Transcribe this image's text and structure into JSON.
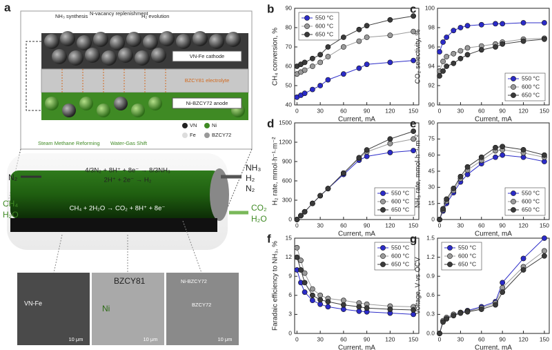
{
  "schematic": {
    "panel": "a",
    "processes": [
      "NH₃ synthesis",
      "N-vacancy replenishment",
      "H₂ evolution",
      "Steam Methane Reforming",
      "Water-Gas Shift"
    ],
    "cathode": "VN-Fe cathode",
    "electrolyte": "BZCY81 electrolyte",
    "anode": "Ni-BZCY72 anode",
    "legend": [
      "VN",
      "Ni",
      "Fe",
      "BZCY72"
    ],
    "reactions": [
      "4/3N₂ + 8H⁺ + 8e⁻ → 8/3NH₃",
      "2H⁺ + 2e⁻ → H₂",
      "CH₄ + 2H₂O → CO₂ + 8H⁺ + 8e⁻"
    ],
    "cathode_in": [
      "N₂"
    ],
    "cathode_out": [
      "NH₃",
      "H₂",
      "N₂"
    ],
    "anode_in": [
      "CH₄",
      "H₂O"
    ],
    "anode_out": [
      "CO₂",
      "H₂O"
    ],
    "micrographs": [
      {
        "label": "VN-Fe",
        "scale": "10 μm"
      },
      {
        "label": "BZCY81",
        "phase": "Ni",
        "scale": "10 μm"
      },
      {
        "label": "Ni-BZCY72",
        "phase": "BZCY72",
        "scale": "10 μm"
      }
    ]
  },
  "chart_data": [
    {
      "type": "line",
      "label": "b",
      "xlabel": "Current, mA",
      "ylabel": "CH₄ conversion, %",
      "legend": "upper-left",
      "x": [
        0,
        5,
        10,
        20,
        30,
        40,
        60,
        80,
        90,
        120,
        150
      ],
      "xlim": [
        -3,
        157
      ],
      "xticks": [
        0,
        30,
        60,
        90,
        120,
        150
      ],
      "ylim": [
        40,
        90
      ],
      "yticks": [
        40,
        50,
        60,
        70,
        80,
        90
      ],
      "series": [
        {
          "name": "550 °C",
          "color": "#2b2bc8",
          "values": [
            44,
            45,
            46,
            48,
            50,
            53,
            56,
            59,
            61,
            62,
            63
          ]
        },
        {
          "name": "600 °C",
          "color": "#9a9a9a",
          "values": [
            56,
            57,
            58,
            60,
            62,
            65,
            70,
            73,
            75,
            76,
            78
          ]
        },
        {
          "name": "650 °C",
          "color": "#3a3a3a",
          "values": [
            60,
            61,
            62,
            64,
            66,
            70,
            75,
            79,
            81,
            84,
            86
          ]
        }
      ]
    },
    {
      "type": "line",
      "label": "c",
      "xlabel": "Current, mA",
      "ylabel": "CO₂ selectivity, %",
      "legend": "lower-right",
      "x": [
        0,
        5,
        10,
        20,
        30,
        40,
        60,
        80,
        90,
        120,
        150
      ],
      "xlim": [
        -3,
        157
      ],
      "xticks": [
        0,
        30,
        60,
        90,
        120,
        150
      ],
      "ylim": [
        90,
        100
      ],
      "yticks": [
        90,
        92,
        94,
        96,
        98,
        100
      ],
      "series": [
        {
          "name": "550 °C",
          "color": "#2b2bc8",
          "values": [
            95.5,
            96.5,
            97,
            97.7,
            98,
            98.2,
            98.3,
            98.4,
            98.4,
            98.5,
            98.5
          ]
        },
        {
          "name": "600 °C",
          "color": "#9a9a9a",
          "values": [
            93.5,
            94.5,
            95,
            95.3,
            95.6,
            95.9,
            96.1,
            96.3,
            96.5,
            96.8,
            96.9
          ]
        },
        {
          "name": "650 °C",
          "color": "#3a3a3a",
          "values": [
            93,
            93.5,
            94,
            94.3,
            94.8,
            95.2,
            95.7,
            96,
            96.3,
            96.6,
            96.8
          ]
        }
      ]
    },
    {
      "type": "line",
      "label": "d",
      "xlabel": "Current, mA",
      "ylabel": "H₂ rate, mmol·h⁻¹·m⁻²",
      "legend": "lower-right",
      "x": [
        0,
        5,
        10,
        20,
        30,
        40,
        60,
        80,
        90,
        120,
        150
      ],
      "xlim": [
        -3,
        157
      ],
      "xticks": [
        0,
        30,
        60,
        90,
        120,
        150
      ],
      "ylim": [
        0,
        1500
      ],
      "yticks": [
        0,
        300,
        600,
        900,
        1200,
        1500
      ],
      "series": [
        {
          "name": "550 °C",
          "color": "#2b2bc8",
          "values": [
            0,
            60,
            120,
            250,
            370,
            480,
            700,
            920,
            980,
            1040,
            1070
          ]
        },
        {
          "name": "600 °C",
          "color": "#9a9a9a",
          "values": [
            0,
            60,
            120,
            250,
            370,
            480,
            720,
            950,
            1050,
            1180,
            1250
          ]
        },
        {
          "name": "650 °C",
          "color": "#3a3a3a",
          "values": [
            0,
            60,
            120,
            250,
            370,
            480,
            720,
            960,
            1080,
            1250,
            1370
          ]
        }
      ]
    },
    {
      "type": "line",
      "label": "e",
      "xlabel": "Current, mA",
      "ylabel": "NH₃ rate, mmol·h⁻¹·m⁻²",
      "legend": "lower-right",
      "x": [
        0,
        5,
        10,
        20,
        30,
        40,
        60,
        80,
        90,
        120,
        150
      ],
      "xlim": [
        -3,
        157
      ],
      "xticks": [
        0,
        30,
        60,
        90,
        120,
        150
      ],
      "ylim": [
        0,
        90
      ],
      "yticks": [
        0,
        15,
        30,
        45,
        60,
        75,
        90
      ],
      "series": [
        {
          "name": "550 °C",
          "color": "#2b2bc8",
          "values": [
            0,
            8,
            15,
            25,
            35,
            42,
            52,
            58,
            60,
            58,
            54
          ]
        },
        {
          "name": "600 °C",
          "color": "#9a9a9a",
          "values": [
            0,
            9,
            17,
            27,
            38,
            46,
            55,
            64,
            65,
            62,
            58
          ]
        },
        {
          "name": "650 °C",
          "color": "#3a3a3a",
          "values": [
            0,
            10,
            19,
            29,
            40,
            49,
            58,
            67,
            68,
            65,
            60
          ]
        }
      ]
    },
    {
      "type": "line",
      "label": "f",
      "xlabel": "Current, mA",
      "ylabel": "Faradaic efficiency to NH₃, %",
      "legend": "upper-right",
      "x": [
        0,
        5,
        10,
        20,
        30,
        40,
        60,
        80,
        90,
        120,
        150
      ],
      "xlim": [
        -3,
        157
      ],
      "xticks": [
        0,
        30,
        60,
        90,
        120,
        150
      ],
      "ylim": [
        0,
        15
      ],
      "yticks": [
        0,
        3,
        6,
        9,
        12,
        15
      ],
      "series": [
        {
          "name": "550 °C",
          "color": "#2b2bc8",
          "values": [
            10,
            8,
            6.5,
            5.2,
            4.6,
            4.2,
            3.8,
            3.5,
            3.4,
            3.2,
            3
          ]
        },
        {
          "name": "600 °C",
          "color": "#9a9a9a",
          "values": [
            13.5,
            11.5,
            9.5,
            7,
            6,
            5.5,
            5.2,
            4.8,
            4.6,
            4.3,
            4.2
          ]
        },
        {
          "name": "650 °C",
          "color": "#3a3a3a",
          "values": [
            12,
            10,
            8,
            6,
            5.3,
            5,
            4.5,
            4.2,
            4,
            3.8,
            3.7
          ]
        }
      ]
    },
    {
      "type": "line",
      "label": "g",
      "xlabel": "Current, mA",
      "ylabel": "Voltage, V vs OCV",
      "legend": "upper-left",
      "x": [
        0,
        5,
        10,
        20,
        30,
        40,
        60,
        80,
        90,
        120,
        150
      ],
      "xlim": [
        -3,
        157
      ],
      "xticks": [
        0,
        30,
        60,
        90,
        120,
        150
      ],
      "ylim": [
        0,
        1.5
      ],
      "yticks": [
        {
          "value": 0,
          "label": "0.0"
        },
        0.3,
        0.6,
        0.9,
        1.2,
        1.5
      ],
      "series": [
        {
          "name": "550 °C",
          "color": "#2b2bc8",
          "values": [
            0,
            0.2,
            0.25,
            0.3,
            0.33,
            0.36,
            0.42,
            0.5,
            0.8,
            1.18,
            1.5
          ]
        },
        {
          "name": "600 °C",
          "color": "#9a9a9a",
          "values": [
            0,
            0.2,
            0.25,
            0.3,
            0.33,
            0.35,
            0.4,
            0.48,
            0.72,
            1.05,
            1.3
          ]
        },
        {
          "name": "650 °C",
          "color": "#3a3a3a",
          "values": [
            0,
            0.18,
            0.23,
            0.28,
            0.32,
            0.34,
            0.38,
            0.45,
            0.65,
            1,
            1.22
          ]
        }
      ]
    }
  ]
}
